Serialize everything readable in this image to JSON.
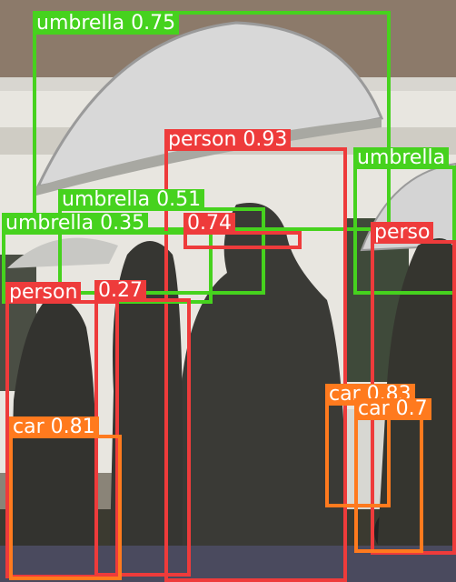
{
  "colors": {
    "person": "#ee3b3b",
    "umbrella": "#46d21e",
    "car": "#ff7a1e"
  },
  "detections": [
    {
      "label": "umbrella 0.75",
      "cls": "umbrella"
    },
    {
      "label": "person 0.93",
      "cls": "person"
    },
    {
      "label": "umbrella",
      "cls": "umbrella"
    },
    {
      "label": "umbrella 0.51",
      "cls": "umbrella"
    },
    {
      "label": "umbrella 0.35",
      "cls": "umbrella"
    },
    {
      "label": "0.74",
      "cls": "person"
    },
    {
      "label": "perso",
      "cls": "person"
    },
    {
      "label": "person",
      "cls": "person"
    },
    {
      "label": "0.27",
      "cls": "person"
    },
    {
      "label": "car 0.83",
      "cls": "car"
    },
    {
      "label": "car 0.7",
      "cls": "car"
    },
    {
      "label": "car 0.81",
      "cls": "car"
    }
  ]
}
